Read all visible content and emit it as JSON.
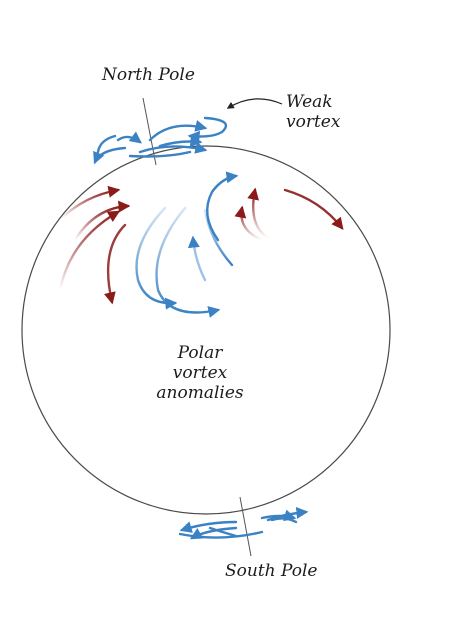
{
  "labels": {
    "north_pole": "North Pole",
    "weak_vortex": [
      "Weak",
      "vortex"
    ],
    "polar_vortex_anomalies": [
      "Polar",
      "vortex",
      "anomalies"
    ],
    "south_pole": "South Pole"
  },
  "colors": {
    "globe_outline": "#4a4a4a",
    "cold_arrows": "#3b82c4",
    "warm_arrows": "#8b1a1a"
  }
}
